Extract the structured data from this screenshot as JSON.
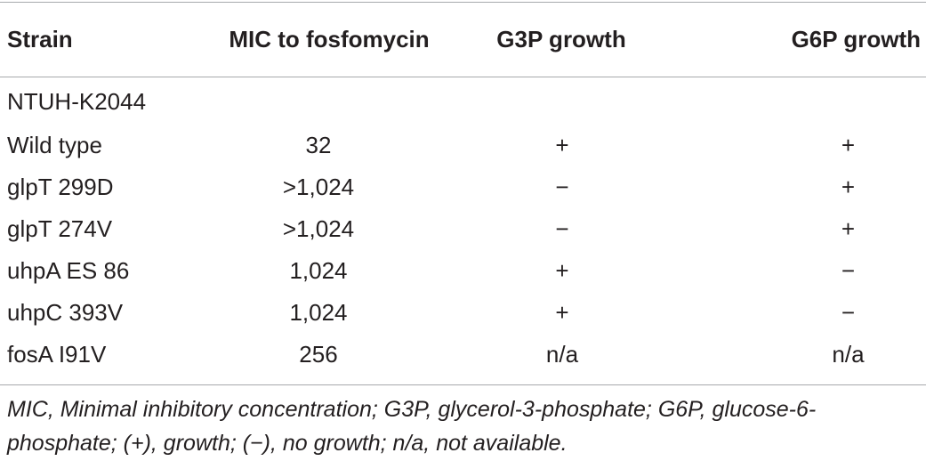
{
  "table": {
    "headers": [
      "Strain",
      "MIC to fosfomycin",
      "G3P growth",
      "G6P growth"
    ],
    "group_label": "NTUH-K2044",
    "rows": [
      {
        "strain": "Wild type",
        "mic": "32",
        "g3p": "+",
        "g6p": "+"
      },
      {
        "strain": "glpT 299D",
        "mic": ">1,024",
        "g3p": "−",
        "g6p": "+"
      },
      {
        "strain": "glpT 274V",
        "mic": ">1,024",
        "g3p": "−",
        "g6p": "+"
      },
      {
        "strain": "uhpA ES 86",
        "mic": "1,024",
        "g3p": "+",
        "g6p": "−"
      },
      {
        "strain": "uhpC 393V",
        "mic": "1,024",
        "g3p": "+",
        "g6p": "−"
      },
      {
        "strain": "fosA I91V",
        "mic": "256",
        "g3p": "n/a",
        "g6p": "n/a"
      }
    ]
  },
  "footnote": {
    "line1": "MIC, Minimal inhibitory concentration; G3P, glycerol-3-phosphate; G6P, glucose-6-",
    "line2": "phosphate; (+), growth; (−), no growth; n/a, not available."
  }
}
